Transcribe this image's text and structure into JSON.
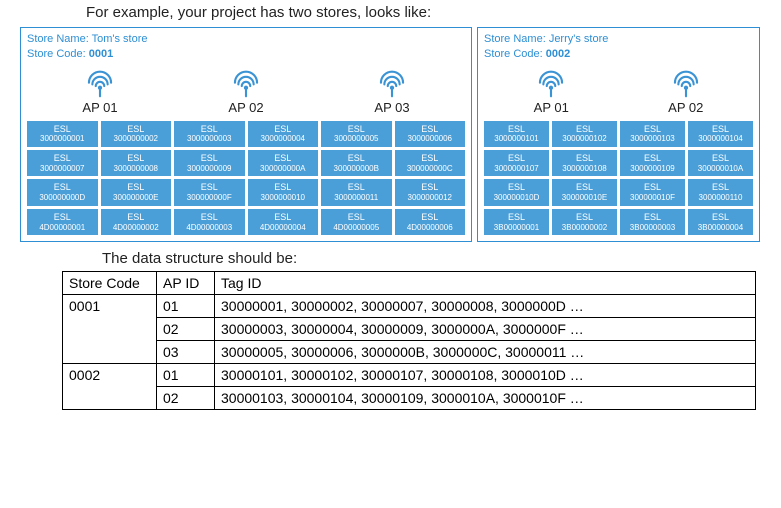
{
  "intro": "For example, your project has two stores, looks like:",
  "colors": {
    "border": "#2e8fd4",
    "esl_bg": "#4a9fd8",
    "esl_text": "#ffffff",
    "ap_icon": "#3a93d4"
  },
  "stores": [
    {
      "name_label": "Store Name:",
      "name": "Tom's store",
      "code_label": "Store Code:",
      "code": "0001",
      "aps": [
        "AP 01",
        "AP 02",
        "AP 03"
      ],
      "esls": [
        "3000000001",
        "3000000002",
        "3000000003",
        "3000000004",
        "3000000005",
        "3000000006",
        "3000000007",
        "3000000008",
        "3000000009",
        "300000000A",
        "300000000B",
        "300000000C",
        "300000000D",
        "300000000E",
        "300000000F",
        "3000000010",
        "3000000011",
        "3000000012",
        "4D00000001",
        "4D00000002",
        "4D00000003",
        "4D00000004",
        "4D00000005",
        "4D00000006"
      ]
    },
    {
      "name_label": "Store Name:",
      "name": "Jerry's store",
      "code_label": "Store Code:",
      "code": "0002",
      "aps": [
        "AP 01",
        "AP 02"
      ],
      "esls": [
        "3000000101",
        "3000000102",
        "3000000103",
        "3000000104",
        "3000000107",
        "3000000108",
        "3000000109",
        "300000010A",
        "300000010D",
        "300000010E",
        "300000010F",
        "3000000110",
        "3B00000001",
        "3B00000002",
        "3B00000003",
        "3B00000004"
      ]
    }
  ],
  "esl_label": "ESL",
  "sub": "The data structure should be:",
  "table": {
    "headers": [
      "Store Code",
      "AP ID",
      "Tag ID"
    ],
    "rows": [
      {
        "sc": "0001",
        "ap": "01",
        "tags": "30000001, 30000002, 30000007, 30000008, 3000000D …"
      },
      {
        "sc": "",
        "ap": "02",
        "tags": "30000003, 30000004, 30000009, 3000000A, 3000000F …"
      },
      {
        "sc": "",
        "ap": "03",
        "tags": "30000005, 30000006, 3000000B, 3000000C, 30000011 …"
      },
      {
        "sc": "0002",
        "ap": "01",
        "tags": "30000101, 30000102, 30000107, 30000108, 3000010D …"
      },
      {
        "sc": "",
        "ap": "02",
        "tags": "30000103, 30000104, 30000109, 3000010A, 3000010F …"
      }
    ]
  }
}
